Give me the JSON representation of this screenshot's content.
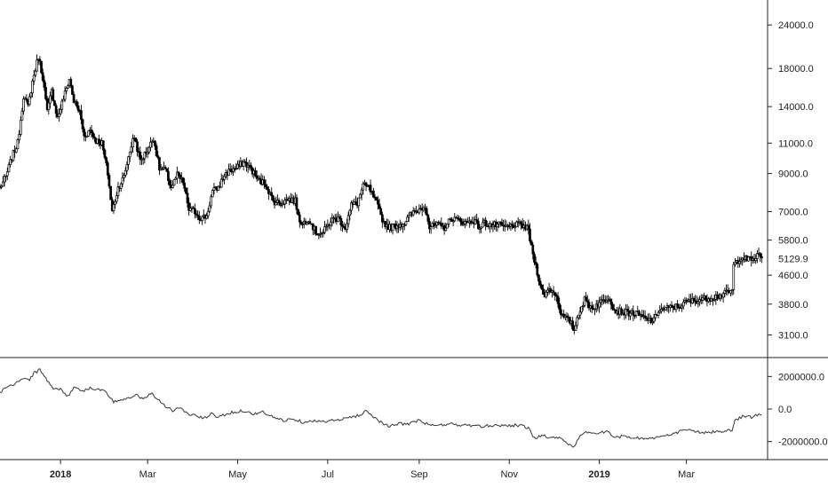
{
  "chart_data": [
    {
      "type": "candlestick",
      "scale": "log",
      "ylim": [
        2750,
        27000
      ],
      "y_ticks": [
        "24000.0",
        "18000.0",
        "14000.0",
        "11000.0",
        "9000.0",
        "7000.0",
        "5800.0",
        "4600.0",
        "3800.0",
        "3100.0"
      ],
      "y_tick_values": [
        24000,
        18000,
        14000,
        11000,
        9000,
        7000,
        5800,
        4600,
        3800,
        3100
      ],
      "last_price_label": "5129.9",
      "last_price": 5129.9,
      "x_ticks": [
        {
          "label": "2018",
          "date": "2018-01-01",
          "bold": true
        },
        {
          "label": "Mar",
          "date": "2018-03-01",
          "bold": false
        },
        {
          "label": "May",
          "date": "2018-05-01",
          "bold": false
        },
        {
          "label": "Jul",
          "date": "2018-07-01",
          "bold": false
        },
        {
          "label": "Sep",
          "date": "2018-09-01",
          "bold": false
        },
        {
          "label": "Nov",
          "date": "2018-11-01",
          "bold": false
        },
        {
          "label": "2019",
          "date": "2019-01-01",
          "bold": true
        },
        {
          "label": "Mar",
          "date": "2019-03-01",
          "bold": false
        }
      ],
      "xlim": [
        "2017-11-21",
        "2019-04-25"
      ],
      "grid": false,
      "price_points": [
        [
          "2017-11-21",
          8200
        ],
        [
          "2017-11-25",
          8800
        ],
        [
          "2017-11-29",
          10000
        ],
        [
          "2017-12-03",
          11000
        ],
        [
          "2017-12-07",
          15000
        ],
        [
          "2017-12-10",
          14000
        ],
        [
          "2017-12-13",
          16500
        ],
        [
          "2017-12-17",
          19500
        ],
        [
          "2017-12-20",
          17000
        ],
        [
          "2017-12-23",
          13500
        ],
        [
          "2017-12-26",
          15500
        ],
        [
          "2017-12-30",
          13000
        ],
        [
          "2018-01-03",
          14800
        ],
        [
          "2018-01-07",
          16800
        ],
        [
          "2018-01-10",
          14500
        ],
        [
          "2018-01-14",
          13500
        ],
        [
          "2018-01-17",
          11500
        ],
        [
          "2018-01-21",
          12000
        ],
        [
          "2018-01-25",
          11200
        ],
        [
          "2018-01-29",
          11000
        ],
        [
          "2018-02-02",
          9000
        ],
        [
          "2018-02-05",
          7000
        ],
        [
          "2018-02-09",
          8200
        ],
        [
          "2018-02-13",
          8800
        ],
        [
          "2018-02-17",
          10500
        ],
        [
          "2018-02-20",
          11500
        ],
        [
          "2018-02-24",
          9800
        ],
        [
          "2018-03-01",
          10500
        ],
        [
          "2018-03-05",
          11400
        ],
        [
          "2018-03-09",
          9300
        ],
        [
          "2018-03-13",
          9200
        ],
        [
          "2018-03-17",
          8200
        ],
        [
          "2018-03-21",
          8900
        ],
        [
          "2018-03-25",
          8500
        ],
        [
          "2018-03-29",
          7100
        ],
        [
          "2018-04-02",
          7000
        ],
        [
          "2018-04-06",
          6700
        ],
        [
          "2018-04-10",
          6800
        ],
        [
          "2018-04-14",
          8000
        ],
        [
          "2018-04-18",
          8200
        ],
        [
          "2018-04-22",
          8900
        ],
        [
          "2018-04-26",
          9200
        ],
        [
          "2018-04-30",
          9300
        ],
        [
          "2018-05-05",
          9700
        ],
        [
          "2018-05-10",
          9300
        ],
        [
          "2018-05-15",
          8600
        ],
        [
          "2018-05-20",
          8400
        ],
        [
          "2018-05-25",
          7500
        ],
        [
          "2018-05-30",
          7400
        ],
        [
          "2018-06-04",
          7600
        ],
        [
          "2018-06-09",
          7500
        ],
        [
          "2018-06-13",
          6400
        ],
        [
          "2018-06-18",
          6700
        ],
        [
          "2018-06-23",
          6100
        ],
        [
          "2018-06-28",
          6100
        ],
        [
          "2018-07-03",
          6600
        ],
        [
          "2018-07-08",
          6700
        ],
        [
          "2018-07-13",
          6300
        ],
        [
          "2018-07-17",
          7300
        ],
        [
          "2018-07-21",
          7400
        ],
        [
          "2018-07-25",
          8300
        ],
        [
          "2018-07-29",
          8200
        ],
        [
          "2018-08-03",
          7400
        ],
        [
          "2018-08-08",
          6500
        ],
        [
          "2018-08-12",
          6300
        ],
        [
          "2018-08-17",
          6400
        ],
        [
          "2018-08-22",
          6500
        ],
        [
          "2018-08-27",
          6900
        ],
        [
          "2018-09-01",
          7100
        ],
        [
          "2018-09-05",
          7300
        ],
        [
          "2018-09-08",
          6300
        ],
        [
          "2018-09-13",
          6400
        ],
        [
          "2018-09-18",
          6300
        ],
        [
          "2018-09-23",
          6700
        ],
        [
          "2018-09-28",
          6600
        ],
        [
          "2018-10-03",
          6500
        ],
        [
          "2018-10-08",
          6600
        ],
        [
          "2018-10-12",
          6300
        ],
        [
          "2018-10-15",
          6500
        ],
        [
          "2018-10-20",
          6400
        ],
        [
          "2018-10-25",
          6400
        ],
        [
          "2018-10-30",
          6300
        ],
        [
          "2018-11-04",
          6400
        ],
        [
          "2018-11-10",
          6400
        ],
        [
          "2018-11-14",
          6200
        ],
        [
          "2018-11-16",
          5500
        ],
        [
          "2018-11-20",
          4700
        ],
        [
          "2018-11-24",
          4000
        ],
        [
          "2018-11-28",
          4200
        ],
        [
          "2018-12-02",
          4100
        ],
        [
          "2018-12-07",
          3500
        ],
        [
          "2018-12-12",
          3400
        ],
        [
          "2018-12-15",
          3200
        ],
        [
          "2018-12-18",
          3600
        ],
        [
          "2018-12-22",
          3900
        ],
        [
          "2018-12-27",
          3700
        ],
        [
          "2019-01-02",
          3850
        ],
        [
          "2019-01-08",
          4000
        ],
        [
          "2019-01-11",
          3650
        ],
        [
          "2019-01-18",
          3600
        ],
        [
          "2019-01-25",
          3580
        ],
        [
          "2019-02-01",
          3450
        ],
        [
          "2019-02-07",
          3400
        ],
        [
          "2019-02-10",
          3650
        ],
        [
          "2019-02-17",
          3700
        ],
        [
          "2019-02-24",
          3750
        ],
        [
          "2019-03-01",
          3850
        ],
        [
          "2019-03-08",
          3900
        ],
        [
          "2019-03-15",
          3950
        ],
        [
          "2019-03-22",
          4000
        ],
        [
          "2019-03-29",
          4100
        ],
        [
          "2019-04-01",
          4150
        ],
        [
          "2019-04-02",
          4900
        ],
        [
          "2019-04-07",
          5200
        ],
        [
          "2019-04-11",
          5100
        ],
        [
          "2019-04-15",
          5100
        ],
        [
          "2019-04-19",
          5250
        ],
        [
          "2019-04-21",
          5129.9
        ]
      ]
    },
    {
      "type": "line",
      "ylim": [
        -3000000,
        3000000
      ],
      "y_ticks": [
        "2000000.0",
        "0.0",
        "-2000000.0"
      ],
      "y_tick_values": [
        2000000,
        0,
        -2000000
      ],
      "grid": false,
      "series": [
        {
          "values": [
            [
              "2017-11-21",
              1000000
            ],
            [
              "2017-11-26",
              1400000
            ],
            [
              "2017-12-01",
              1500000
            ],
            [
              "2017-12-06",
              1900000
            ],
            [
              "2017-12-11",
              1800000
            ],
            [
              "2017-12-14",
              2200000
            ],
            [
              "2017-12-18",
              2400000
            ],
            [
              "2017-12-22",
              1900000
            ],
            [
              "2017-12-27",
              1300000
            ],
            [
              "2018-01-01",
              1200000
            ],
            [
              "2018-01-06",
              800000
            ],
            [
              "2018-01-11",
              1400000
            ],
            [
              "2018-01-16",
              1100000
            ],
            [
              "2018-01-21",
              1300000
            ],
            [
              "2018-01-26",
              1200000
            ],
            [
              "2018-01-31",
              1100000
            ],
            [
              "2018-02-06",
              400000
            ],
            [
              "2018-02-11",
              600000
            ],
            [
              "2018-02-16",
              700000
            ],
            [
              "2018-02-21",
              900000
            ],
            [
              "2018-02-26",
              600000
            ],
            [
              "2018-03-03",
              1000000
            ],
            [
              "2018-03-08",
              600000
            ],
            [
              "2018-03-13",
              200000
            ],
            [
              "2018-03-18",
              -100000
            ],
            [
              "2018-03-23",
              100000
            ],
            [
              "2018-03-28",
              -300000
            ],
            [
              "2018-04-03",
              -400000
            ],
            [
              "2018-04-08",
              -600000
            ],
            [
              "2018-04-13",
              -300000
            ],
            [
              "2018-04-18",
              -500000
            ],
            [
              "2018-04-23",
              -300000
            ],
            [
              "2018-04-28",
              -200000
            ],
            [
              "2018-05-05",
              -100000
            ],
            [
              "2018-05-11",
              -300000
            ],
            [
              "2018-05-18",
              -200000
            ],
            [
              "2018-05-25",
              -500000
            ],
            [
              "2018-06-01",
              -700000
            ],
            [
              "2018-06-08",
              -600000
            ],
            [
              "2018-06-14",
              -800000
            ],
            [
              "2018-06-20",
              -700000
            ],
            [
              "2018-06-26",
              -800000
            ],
            [
              "2018-07-03",
              -700000
            ],
            [
              "2018-07-09",
              -700000
            ],
            [
              "2018-07-16",
              -500000
            ],
            [
              "2018-07-22",
              -400000
            ],
            [
              "2018-07-27",
              -100000
            ],
            [
              "2018-07-31",
              -400000
            ],
            [
              "2018-08-06",
              -800000
            ],
            [
              "2018-08-12",
              -1100000
            ],
            [
              "2018-08-18",
              -900000
            ],
            [
              "2018-08-25",
              -900000
            ],
            [
              "2018-09-01",
              -700000
            ],
            [
              "2018-09-08",
              -1000000
            ],
            [
              "2018-09-15",
              -1000000
            ],
            [
              "2018-09-22",
              -900000
            ],
            [
              "2018-09-29",
              -1000000
            ],
            [
              "2018-10-06",
              -1000000
            ],
            [
              "2018-10-13",
              -1100000
            ],
            [
              "2018-10-20",
              -1000000
            ],
            [
              "2018-10-27",
              -1000000
            ],
            [
              "2018-11-03",
              -1000000
            ],
            [
              "2018-11-10",
              -1000000
            ],
            [
              "2018-11-14",
              -1200000
            ],
            [
              "2018-11-18",
              -1800000
            ],
            [
              "2018-11-24",
              -1600000
            ],
            [
              "2018-11-30",
              -1800000
            ],
            [
              "2018-12-05",
              -1700000
            ],
            [
              "2018-12-10",
              -2100000
            ],
            [
              "2018-12-15",
              -2300000
            ],
            [
              "2018-12-19",
              -1700000
            ],
            [
              "2018-12-24",
              -1400000
            ],
            [
              "2018-12-30",
              -1500000
            ],
            [
              "2019-01-06",
              -1400000
            ],
            [
              "2019-01-12",
              -1700000
            ],
            [
              "2019-01-20",
              -1700000
            ],
            [
              "2019-01-28",
              -1800000
            ],
            [
              "2019-02-05",
              -1800000
            ],
            [
              "2019-02-12",
              -1700000
            ],
            [
              "2019-02-19",
              -1600000
            ],
            [
              "2019-02-26",
              -1300000
            ],
            [
              "2019-03-05",
              -1300000
            ],
            [
              "2019-03-12",
              -1500000
            ],
            [
              "2019-03-19",
              -1400000
            ],
            [
              "2019-03-26",
              -1400000
            ],
            [
              "2019-04-01",
              -1300000
            ],
            [
              "2019-04-03",
              -700000
            ],
            [
              "2019-04-09",
              -400000
            ],
            [
              "2019-04-14",
              -500000
            ],
            [
              "2019-04-21",
              -300000
            ]
          ]
        }
      ]
    }
  ]
}
